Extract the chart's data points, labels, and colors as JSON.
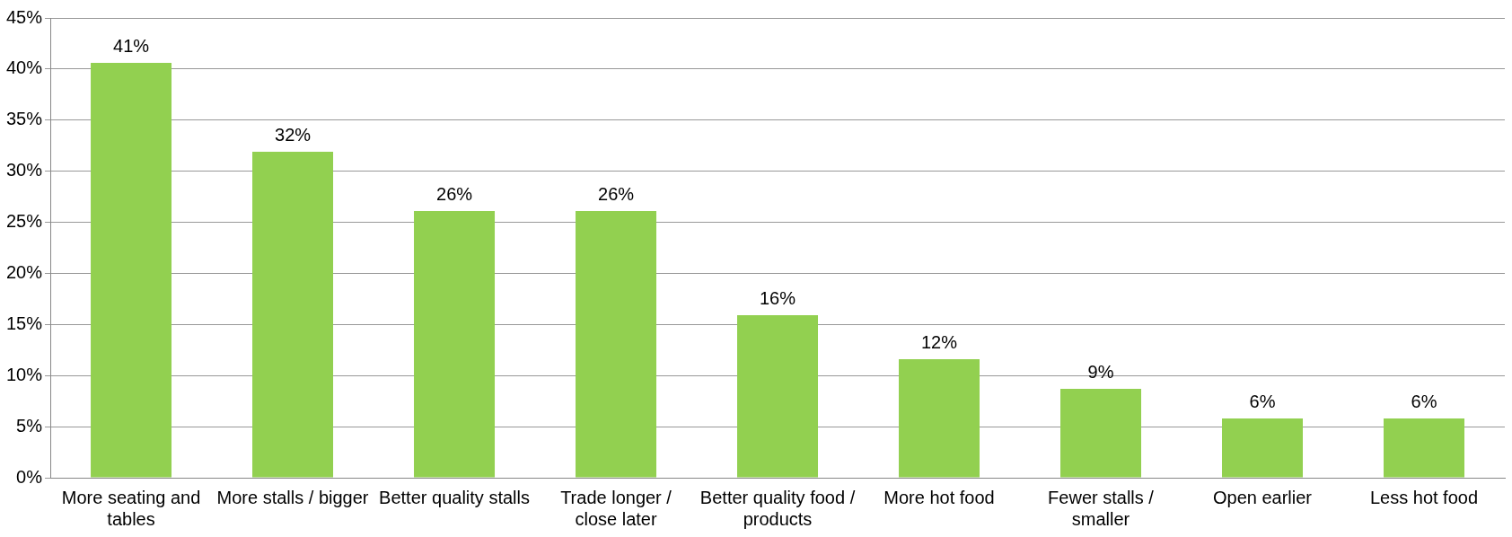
{
  "chart_data": {
    "type": "bar",
    "categories": [
      "More seating and tables",
      "More stalls / bigger",
      "Better quality stalls",
      "Trade longer / close later",
      "Better quality food / products",
      "More hot food",
      "Fewer stalls / smaller",
      "Open earlier",
      "Less hot food"
    ],
    "values": [
      40.6,
      31.9,
      26.1,
      26.1,
      15.9,
      11.6,
      8.7,
      5.8,
      5.8
    ],
    "value_labels": [
      "41%",
      "32%",
      "26%",
      "26%",
      "16%",
      "12%",
      "9%",
      "6%",
      "6%"
    ],
    "color": "#92d050",
    "ylim": [
      0,
      45
    ],
    "yticks": [
      {
        "value": 0,
        "label": "0%"
      },
      {
        "value": 5,
        "label": "5%"
      },
      {
        "value": 10,
        "label": "10%"
      },
      {
        "value": 15,
        "label": "15%"
      },
      {
        "value": 20,
        "label": "20%"
      },
      {
        "value": 25,
        "label": "25%"
      },
      {
        "value": 30,
        "label": "30%"
      },
      {
        "value": 35,
        "label": "35%"
      },
      {
        "value": 40,
        "label": "40%"
      },
      {
        "value": 45,
        "label": "45%"
      }
    ],
    "grid": "y"
  }
}
